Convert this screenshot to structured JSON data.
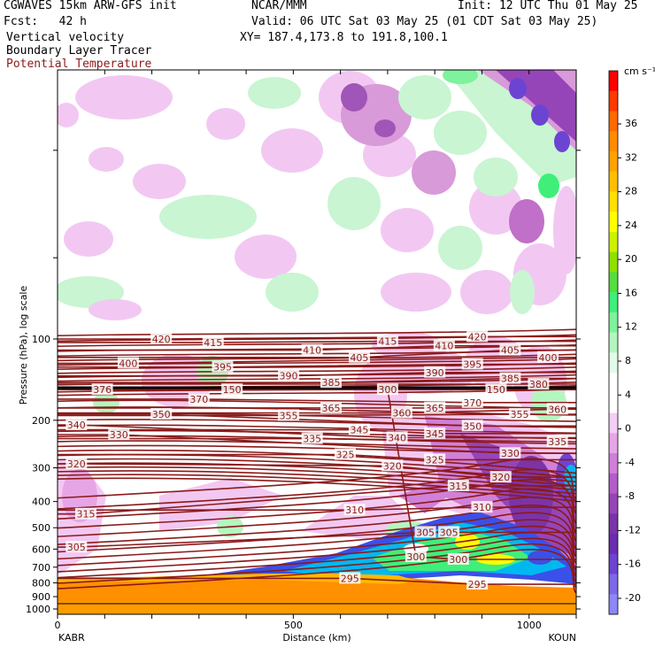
{
  "header": {
    "model": "CGWAVES 15km ARW-GFS init",
    "center": "NCAR/MMM",
    "init": "Init: 12 UTC Thu 01 May 25",
    "fcst": "Fcst:   42 h",
    "valid": "Valid: 06 UTC Sat 03 May 25 (01 CDT Sat 03 May 25)",
    "xy": "XY= 187.4,173.8 to 191.8,100.1",
    "fields": [
      {
        "label": "Vertical velocity",
        "color": "#000000"
      },
      {
        "label": "Boundary Layer Tracer",
        "color": "#000000"
      },
      {
        "label": "Potential Temperature",
        "color": "#8b1a1a"
      }
    ]
  },
  "chart_data": {
    "type": "cross-section",
    "xlabel": "Distance (km)",
    "ylabel": "Pressure (hPa), log scale",
    "x_ticks": [
      "0",
      "500",
      "1000"
    ],
    "x_tick_values": [
      0,
      500,
      1000
    ],
    "xlim": [
      0,
      1100
    ],
    "y_scale": "log",
    "y_ticks": [
      100,
      200,
      300,
      400,
      500,
      600,
      700,
      800,
      900,
      1000
    ],
    "left_endpoint": "KABR",
    "right_endpoint": "KOUN",
    "colorbar": {
      "units": "cm s⁻¹",
      "tick_labels": [
        "36",
        "32",
        "28",
        "24",
        "20",
        "16",
        "12",
        "8",
        "4",
        "0",
        "-4",
        "-8",
        "-12",
        "-16",
        "-20"
      ],
      "colors": [
        "#ff0000",
        "#ff3a00",
        "#ff6a00",
        "#ff8c00",
        "#ffa200",
        "#ffbf00",
        "#ffe000",
        "#ffff00",
        "#ccf200",
        "#8ee000",
        "#56dd3f",
        "#3fef7a",
        "#7ef29c",
        "#b4f6c0",
        "#e2fbe8",
        "#ffffff",
        "#ffffff",
        "#f5cdf5",
        "#e6a6e6",
        "#d080d8",
        "#b45cc8",
        "#9645b8",
        "#7a34a8",
        "#6a2cb0",
        "#6c44d2",
        "#7c68e8",
        "#8c88f8"
      ]
    },
    "theta_contour_labels": [
      {
        "value": "420",
        "x": 220,
        "p": 100
      },
      {
        "value": "415",
        "x": 330,
        "p": 103
      },
      {
        "value": "415",
        "x": 700,
        "p": 102
      },
      {
        "value": "410",
        "x": 540,
        "p": 110
      },
      {
        "value": "410",
        "x": 820,
        "p": 106
      },
      {
        "value": "420",
        "x": 890,
        "p": 98
      },
      {
        "value": "405",
        "x": 640,
        "p": 117
      },
      {
        "value": "405",
        "x": 960,
        "p": 110
      },
      {
        "value": "400",
        "x": 150,
        "p": 123
      },
      {
        "value": "400",
        "x": 1040,
        "p": 117
      },
      {
        "value": "395",
        "x": 350,
        "p": 127
      },
      {
        "value": "395",
        "x": 880,
        "p": 124
      },
      {
        "value": "390",
        "x": 490,
        "p": 137
      },
      {
        "value": "390",
        "x": 800,
        "p": 133
      },
      {
        "value": "385",
        "x": 580,
        "p": 145
      },
      {
        "value": "385",
        "x": 960,
        "p": 140
      },
      {
        "value": "380",
        "x": 1020,
        "p": 147
      },
      {
        "value": "376",
        "x": 95,
        "p": 154
      },
      {
        "value": "150",
        "x": 370,
        "p": 154
      },
      {
        "value": "300",
        "x": 700,
        "p": 154
      },
      {
        "value": "150",
        "x": 930,
        "p": 154
      },
      {
        "value": "370",
        "x": 300,
        "p": 167
      },
      {
        "value": "370",
        "x": 880,
        "p": 172
      },
      {
        "value": "365",
        "x": 580,
        "p": 180
      },
      {
        "value": "365",
        "x": 800,
        "p": 180
      },
      {
        "value": "360",
        "x": 730,
        "p": 188
      },
      {
        "value": "360",
        "x": 1060,
        "p": 182
      },
      {
        "value": "355",
        "x": 490,
        "p": 192
      },
      {
        "value": "355",
        "x": 980,
        "p": 190
      },
      {
        "value": "350",
        "x": 220,
        "p": 190
      },
      {
        "value": "350",
        "x": 880,
        "p": 210
      },
      {
        "value": "345",
        "x": 640,
        "p": 217
      },
      {
        "value": "345",
        "x": 800,
        "p": 224
      },
      {
        "value": "340",
        "x": 40,
        "p": 208
      },
      {
        "value": "340",
        "x": 720,
        "p": 232
      },
      {
        "value": "335",
        "x": 540,
        "p": 234
      },
      {
        "value": "335",
        "x": 1060,
        "p": 240
      },
      {
        "value": "330",
        "x": 130,
        "p": 226
      },
      {
        "value": "330",
        "x": 960,
        "p": 265
      },
      {
        "value": "325",
        "x": 610,
        "p": 268
      },
      {
        "value": "325",
        "x": 800,
        "p": 280
      },
      {
        "value": "320",
        "x": 40,
        "p": 290
      },
      {
        "value": "320",
        "x": 710,
        "p": 295
      },
      {
        "value": "320",
        "x": 940,
        "p": 325
      },
      {
        "value": "315",
        "x": 850,
        "p": 350
      },
      {
        "value": "315",
        "x": 60,
        "p": 445
      },
      {
        "value": "310",
        "x": 630,
        "p": 430
      },
      {
        "value": "310",
        "x": 900,
        "p": 420
      },
      {
        "value": "305",
        "x": 780,
        "p": 520
      },
      {
        "value": "305",
        "x": 40,
        "p": 590
      },
      {
        "value": "305",
        "x": 830,
        "p": 520
      },
      {
        "value": "300",
        "x": 760,
        "p": 640
      },
      {
        "value": "300",
        "x": 850,
        "p": 655
      },
      {
        "value": "295",
        "x": 620,
        "p": 770
      },
      {
        "value": "295",
        "x": 890,
        "p": 810
      }
    ]
  }
}
